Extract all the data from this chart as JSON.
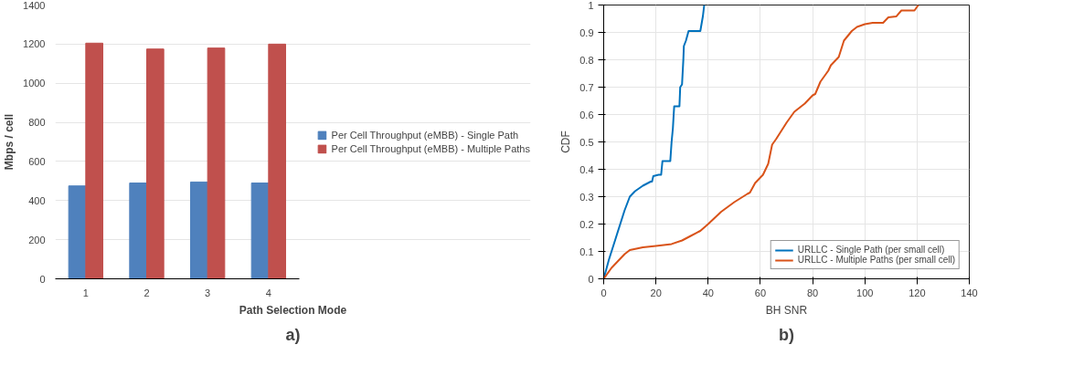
{
  "chart_data": [
    {
      "type": "bar",
      "xlabel": "Path Selection Mode",
      "ylabel": "Mbps / cell",
      "categories": [
        "1",
        "2",
        "3",
        "4"
      ],
      "ylim": [
        0,
        1400
      ],
      "yticks": [
        0,
        200,
        400,
        600,
        800,
        1000,
        1200,
        1400
      ],
      "grid": "y",
      "legend": "right",
      "annotations": [
        "a)"
      ],
      "series": [
        {
          "name": "Per Cell Throughput (eMBB) - Single Path",
          "color": "#4f81bd",
          "values": [
            475,
            490,
            495,
            490
          ]
        },
        {
          "name": "Per Cell Throughput (eMBB) - Multiple Paths",
          "color": "#c0504d",
          "values": [
            1205,
            1175,
            1180,
            1200
          ]
        }
      ]
    },
    {
      "type": "line",
      "xlabel": "BH SNR",
      "ylabel": "CDF",
      "xlim": [
        0,
        140
      ],
      "xticks": [
        0,
        20,
        40,
        60,
        80,
        100,
        120,
        140
      ],
      "ylim": [
        0,
        1
      ],
      "yticks": [
        0,
        0.1,
        0.2,
        0.3,
        0.4,
        0.5,
        0.6,
        0.7,
        0.8,
        0.9,
        1
      ],
      "grid": true,
      "legend": "bottom right",
      "annotations": [
        "b)"
      ],
      "series": [
        {
          "name": "URLLC - Single Path (per small cell)",
          "color": "#0072bd",
          "x": [
            0,
            2,
            5,
            8,
            10,
            12,
            15,
            18,
            18.5,
            19,
            21,
            22,
            22.5,
            25.5,
            26,
            26.5,
            26.8,
            27,
            29,
            29.3,
            30,
            30.5,
            30.7,
            31.5,
            32.5,
            37,
            38,
            38.5
          ],
          "values": [
            0,
            0.07,
            0.16,
            0.25,
            0.3,
            0.32,
            0.34,
            0.355,
            0.355,
            0.375,
            0.38,
            0.38,
            0.43,
            0.43,
            0.5,
            0.55,
            0.6,
            0.63,
            0.63,
            0.7,
            0.71,
            0.8,
            0.85,
            0.87,
            0.905,
            0.905,
            0.96,
            1.0
          ]
        },
        {
          "name": "URLLC - Multiple Paths (per small cell)",
          "color": "#d95319",
          "x": [
            0,
            3,
            5,
            8,
            10,
            15,
            20,
            26,
            30,
            33,
            37,
            40,
            45,
            50,
            55,
            56,
            58,
            61,
            63,
            64.5,
            66,
            70,
            73,
            77,
            80,
            81,
            83,
            86,
            87,
            90,
            92,
            95,
            97,
            100,
            103,
            107,
            109,
            112,
            114,
            119,
            120.5
          ],
          "values": [
            0,
            0.04,
            0.06,
            0.09,
            0.105,
            0.115,
            0.12,
            0.127,
            0.14,
            0.155,
            0.175,
            0.2,
            0.245,
            0.28,
            0.31,
            0.315,
            0.35,
            0.38,
            0.42,
            0.49,
            0.51,
            0.57,
            0.61,
            0.64,
            0.67,
            0.675,
            0.72,
            0.76,
            0.78,
            0.81,
            0.87,
            0.905,
            0.92,
            0.93,
            0.935,
            0.935,
            0.955,
            0.958,
            0.98,
            0.98,
            1.0
          ]
        }
      ]
    }
  ]
}
